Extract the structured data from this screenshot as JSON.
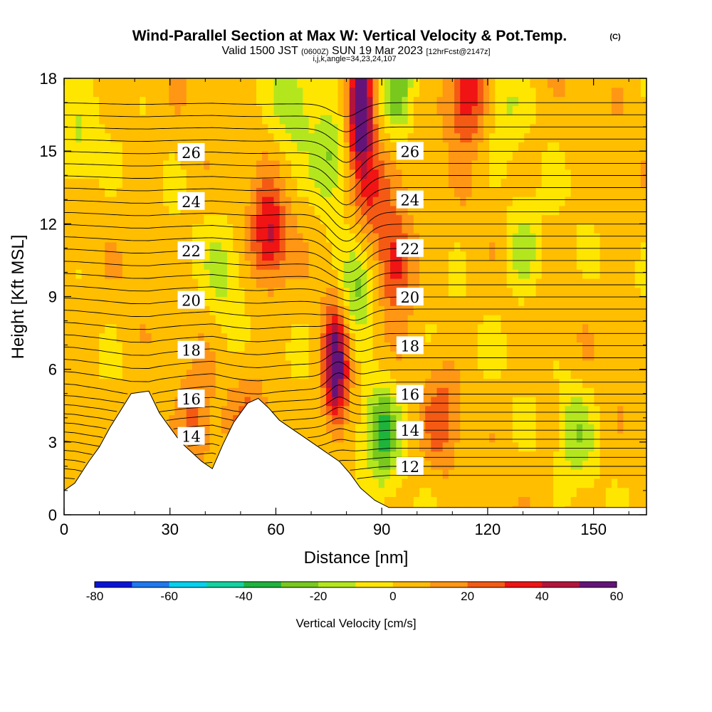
{
  "header": {
    "title": "Wind-Parallel Section at Max W: Vertical Velocity & Pot.Temp.",
    "copyright": "(C)",
    "subtitle_pre": "Valid 1500 JST",
    "subtitle_utc": "(0600Z)",
    "subtitle_date": "SUN 19 Mar 2023",
    "subtitle_fcst": "[12hrFcst@2147z]",
    "subtitle_line3": "i,j,k,angle=34,23,24,107"
  },
  "colorbar": {
    "title": "Vertical Velocity [cm/s]",
    "ticks": [
      "-80",
      "-60",
      "-40",
      "-20",
      "0",
      "20",
      "40",
      "60"
    ],
    "tick_values": [
      -80,
      -60,
      -40,
      -20,
      0,
      20,
      40,
      60
    ],
    "colors": [
      "#0a14d8",
      "#1e78f0",
      "#00d2f0",
      "#14d2a0",
      "#1eb43c",
      "#78c81e",
      "#b4e61e",
      "#ffe600",
      "#ffbe00",
      "#ff9614",
      "#f55a14",
      "#f01414",
      "#b4143c",
      "#641478"
    ]
  },
  "chart_data": {
    "type": "heatmap",
    "title": "Wind-Parallel Section at Max W: Vertical Velocity & Pot.Temp.",
    "xlabel": "Distance [nm]",
    "ylabel": "Height [Kft MSL]",
    "xlim": [
      0,
      165
    ],
    "ylim": [
      0,
      18
    ],
    "x_ticks": [
      0,
      30,
      60,
      90,
      120,
      150
    ],
    "y_ticks": [
      0,
      3,
      6,
      9,
      12,
      15,
      18
    ],
    "x_tick_labels": [
      "0",
      "30",
      "60",
      "90",
      "120",
      "150"
    ],
    "y_tick_labels": [
      "0",
      "3",
      "6",
      "9",
      "12",
      "15",
      "18"
    ],
    "fill_variable": "Vertical Velocity",
    "fill_units": "cm/s",
    "contour_variable": "Potential Temperature",
    "contour_levels": [
      12,
      14,
      16,
      18,
      20,
      22,
      24,
      26
    ],
    "terrain_kft": [
      [
        0,
        1.0
      ],
      [
        3,
        1.3
      ],
      [
        7,
        2.2
      ],
      [
        10,
        2.8
      ],
      [
        13,
        3.6
      ],
      [
        16,
        4.3
      ],
      [
        19,
        5.0
      ],
      [
        24,
        5.1
      ],
      [
        27,
        4.2
      ],
      [
        30,
        3.6
      ],
      [
        33,
        3.0
      ],
      [
        36,
        2.6
      ],
      [
        39,
        2.2
      ],
      [
        42,
        1.9
      ],
      [
        45,
        2.9
      ],
      [
        48,
        3.8
      ],
      [
        52,
        4.6
      ],
      [
        55,
        4.8
      ],
      [
        58,
        4.4
      ],
      [
        61,
        3.9
      ],
      [
        64,
        3.6
      ],
      [
        67,
        3.3
      ],
      [
        71,
        2.9
      ],
      [
        75,
        2.5
      ],
      [
        78,
        2.2
      ],
      [
        81,
        1.7
      ],
      [
        84,
        1.1
      ],
      [
        88,
        0.6
      ],
      [
        92,
        0.3
      ],
      [
        100,
        0.3
      ],
      [
        165,
        0.3
      ]
    ],
    "vv_features": [
      {
        "x": 77,
        "z": 6.0,
        "w": 58
      },
      {
        "x": 84,
        "z": 16.5,
        "w": 60
      },
      {
        "x": 114,
        "z": 17.5,
        "w": 42
      },
      {
        "x": 58,
        "z": 11.5,
        "w": 38
      },
      {
        "x": 87,
        "z": 13.5,
        "w": 30
      },
      {
        "x": 94,
        "z": 10.5,
        "w": 38
      },
      {
        "x": 37,
        "z": 3.5,
        "w": 20
      },
      {
        "x": 53,
        "z": 3.5,
        "w": 20
      },
      {
        "x": 107,
        "z": 4.0,
        "w": 20
      },
      {
        "x": 90,
        "z": 3.5,
        "w": -38
      },
      {
        "x": 83,
        "z": 9.5,
        "w": -30
      },
      {
        "x": 94,
        "z": 17.5,
        "w": -30
      },
      {
        "x": 75,
        "z": 14.5,
        "w": -25
      },
      {
        "x": 65,
        "z": 17.0,
        "w": -22
      },
      {
        "x": 130,
        "z": 11.0,
        "w": -20
      },
      {
        "x": 145,
        "z": 3.5,
        "w": -20
      },
      {
        "x": 45,
        "z": 10.0,
        "w": -15
      },
      {
        "x": 4,
        "z": 15.0,
        "w": -15
      },
      {
        "x": 125,
        "z": 17.0,
        "w": -12
      }
    ]
  }
}
